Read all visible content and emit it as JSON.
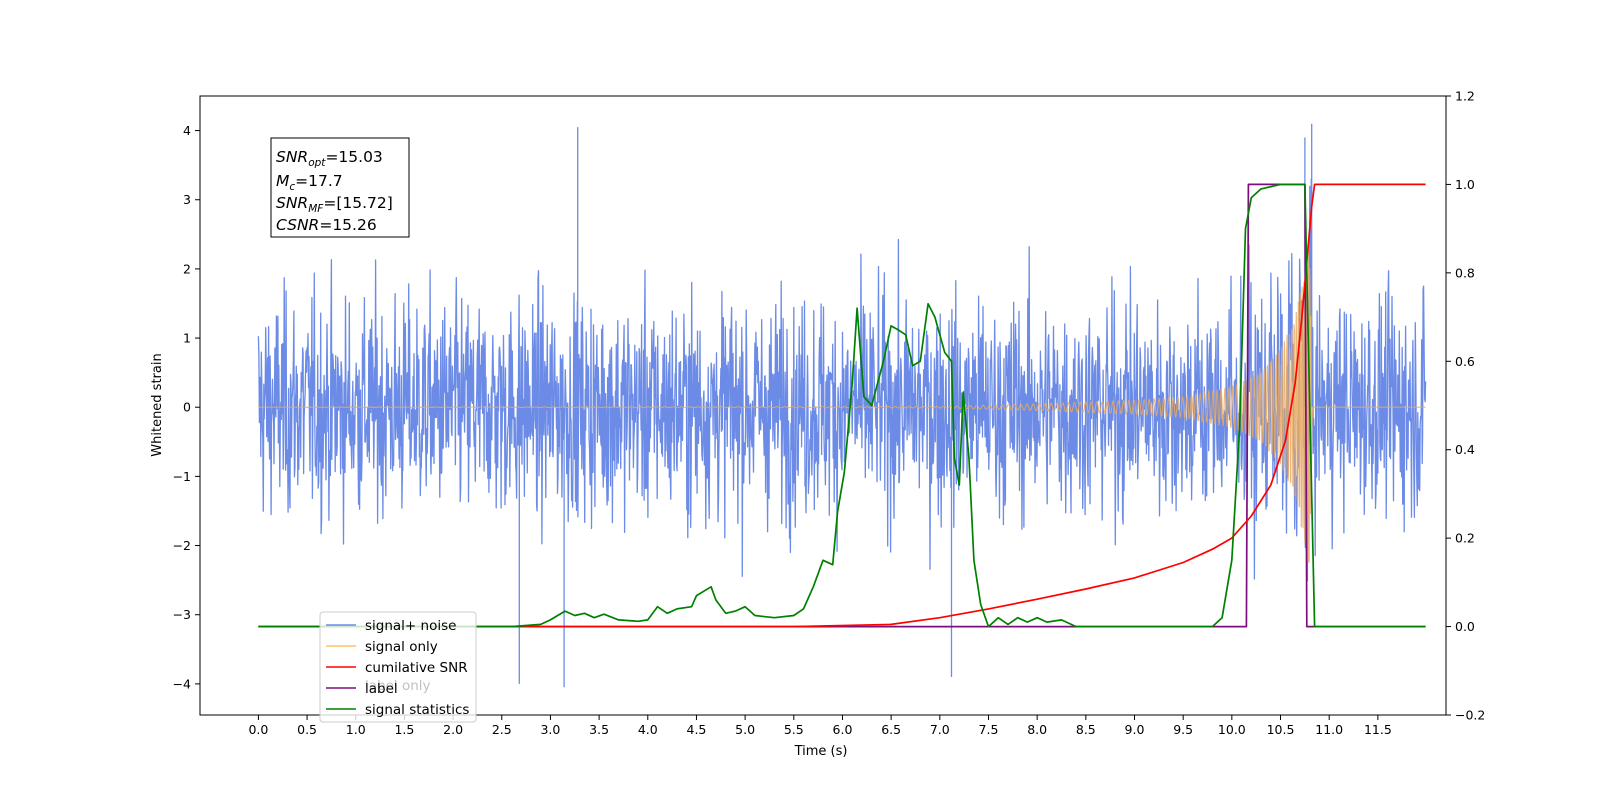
{
  "chart_data": {
    "type": "line",
    "title": "",
    "xlabel": "Time (s)",
    "ylabel": "Whitened strain",
    "xlim": [
      -0.6,
      12.2
    ],
    "ylim": [
      -4.45,
      4.5
    ],
    "y2lim": [
      -0.2,
      1.2
    ],
    "x_ticks": [
      "0.0",
      "0.5",
      "1.0",
      "1.5",
      "2.0",
      "2.5",
      "3.0",
      "3.5",
      "4.0",
      "4.5",
      "5.0",
      "5.5",
      "6.0",
      "6.5",
      "7.0",
      "7.5",
      "8.0",
      "8.5",
      "9.0",
      "9.5",
      "10.0",
      "10.5",
      "11.0",
      "11.5"
    ],
    "y_ticks": [
      "−4",
      "−3",
      "−2",
      "−1",
      "0",
      "1",
      "2",
      "3",
      "4"
    ],
    "y2_ticks": [
      "−0.2",
      "0.0",
      "0.2",
      "0.4",
      "0.6",
      "0.8",
      "1.0",
      "1.2"
    ],
    "annotation": {
      "lines": [
        {
          "sym": "SNR",
          "sub": "opt",
          "rest": "=15.03"
        },
        {
          "sym": "M",
          "sub": "c",
          "rest": "=17.7"
        },
        {
          "sym": "SNR",
          "sub": "MF",
          "rest": "=[15.72]"
        },
        {
          "sym": "CSNR",
          "sub": "",
          "rest": "=15.26"
        }
      ]
    },
    "legend": {
      "placement": "lower-left",
      "entries": [
        {
          "label": "signal+ noise",
          "color": "#6b8be6"
        },
        {
          "label": "signal only",
          "color": "#ffc060"
        },
        {
          "label": "cumilative SNR",
          "color": "#ff0000"
        },
        {
          "label": "label",
          "color": "#7b0f7b"
        },
        {
          "label": "signal statistics",
          "color": "#008000"
        }
      ],
      "hidden_label": "label only"
    },
    "series": [
      {
        "name": "signal+ noise",
        "axis": "left",
        "color": "#6b8be6",
        "x_range": [
          0.0,
          11.99
        ],
        "envelope_typical": [
          -2.6,
          2.6
        ],
        "extremes": [
          [
            3.28,
            4.05
          ],
          [
            10.82,
            4.1
          ],
          [
            10.75,
            3.9
          ],
          [
            2.68,
            -4.0
          ],
          [
            3.14,
            -4.05
          ],
          [
            7.12,
            -3.9
          ]
        ]
      },
      {
        "name": "signal only",
        "axis": "left",
        "color": "#e8a860",
        "x_range": [
          0.0,
          11.99
        ],
        "amplitude": [
          [
            0.0,
            0.0
          ],
          [
            7.0,
            0.01
          ],
          [
            8.0,
            0.05
          ],
          [
            9.0,
            0.1
          ],
          [
            9.5,
            0.15
          ],
          [
            10.0,
            0.3
          ],
          [
            10.3,
            0.5
          ],
          [
            10.5,
            0.85
          ],
          [
            10.65,
            1.3
          ],
          [
            10.75,
            2.0
          ],
          [
            10.8,
            2.6
          ],
          [
            10.83,
            0.0
          ],
          [
            11.99,
            0.0
          ]
        ]
      },
      {
        "name": "cumilative SNR",
        "axis": "right",
        "color": "#ff0000",
        "points": [
          [
            0.0,
            0.0
          ],
          [
            5.5,
            0.0
          ],
          [
            6.5,
            0.005
          ],
          [
            7.0,
            0.02
          ],
          [
            7.5,
            0.04
          ],
          [
            8.0,
            0.062
          ],
          [
            8.5,
            0.085
          ],
          [
            9.0,
            0.11
          ],
          [
            9.5,
            0.145
          ],
          [
            9.8,
            0.175
          ],
          [
            10.0,
            0.2
          ],
          [
            10.2,
            0.25
          ],
          [
            10.4,
            0.32
          ],
          [
            10.55,
            0.42
          ],
          [
            10.65,
            0.55
          ],
          [
            10.72,
            0.7
          ],
          [
            10.78,
            0.85
          ],
          [
            10.82,
            0.95
          ],
          [
            10.85,
            1.0
          ],
          [
            11.99,
            1.0
          ]
        ]
      },
      {
        "name": "label",
        "axis": "right",
        "color": "#7b0f7b",
        "points": [
          [
            0.0,
            0.0
          ],
          [
            10.15,
            0.0
          ],
          [
            10.17,
            1.0
          ],
          [
            10.75,
            1.0
          ],
          [
            10.77,
            0.0
          ],
          [
            11.99,
            0.0
          ]
        ]
      },
      {
        "name": "signal statistics",
        "axis": "right",
        "color": "#008000",
        "points": [
          [
            0.0,
            0.0
          ],
          [
            2.6,
            0.0
          ],
          [
            2.9,
            0.005
          ],
          [
            3.0,
            0.015
          ],
          [
            3.15,
            0.035
          ],
          [
            3.25,
            0.025
          ],
          [
            3.35,
            0.03
          ],
          [
            3.45,
            0.02
          ],
          [
            3.55,
            0.028
          ],
          [
            3.7,
            0.015
          ],
          [
            3.9,
            0.012
          ],
          [
            4.0,
            0.015
          ],
          [
            4.1,
            0.045
          ],
          [
            4.2,
            0.03
          ],
          [
            4.3,
            0.04
          ],
          [
            4.45,
            0.045
          ],
          [
            4.5,
            0.07
          ],
          [
            4.65,
            0.09
          ],
          [
            4.7,
            0.06
          ],
          [
            4.8,
            0.03
          ],
          [
            4.9,
            0.035
          ],
          [
            5.0,
            0.045
          ],
          [
            5.1,
            0.025
          ],
          [
            5.3,
            0.02
          ],
          [
            5.5,
            0.025
          ],
          [
            5.6,
            0.04
          ],
          [
            5.7,
            0.09
          ],
          [
            5.8,
            0.15
          ],
          [
            5.9,
            0.14
          ],
          [
            5.95,
            0.26
          ],
          [
            6.02,
            0.35
          ],
          [
            6.1,
            0.55
          ],
          [
            6.15,
            0.72
          ],
          [
            6.22,
            0.52
          ],
          [
            6.3,
            0.5
          ],
          [
            6.42,
            0.6
          ],
          [
            6.5,
            0.68
          ],
          [
            6.58,
            0.67
          ],
          [
            6.65,
            0.66
          ],
          [
            6.72,
            0.59
          ],
          [
            6.8,
            0.6
          ],
          [
            6.88,
            0.73
          ],
          [
            6.95,
            0.7
          ],
          [
            7.05,
            0.62
          ],
          [
            7.12,
            0.6
          ],
          [
            7.15,
            0.38
          ],
          [
            7.2,
            0.32
          ],
          [
            7.24,
            0.53
          ],
          [
            7.3,
            0.38
          ],
          [
            7.35,
            0.15
          ],
          [
            7.42,
            0.05
          ],
          [
            7.5,
            0.0
          ],
          [
            7.6,
            0.02
          ],
          [
            7.7,
            0.005
          ],
          [
            7.8,
            0.02
          ],
          [
            7.9,
            0.01
          ],
          [
            8.0,
            0.02
          ],
          [
            8.1,
            0.01
          ],
          [
            8.25,
            0.015
          ],
          [
            8.4,
            0.0
          ],
          [
            9.8,
            0.0
          ],
          [
            9.9,
            0.02
          ],
          [
            10.0,
            0.15
          ],
          [
            10.08,
            0.45
          ],
          [
            10.14,
            0.9
          ],
          [
            10.2,
            0.97
          ],
          [
            10.3,
            0.99
          ],
          [
            10.5,
            1.0
          ],
          [
            10.75,
            1.0
          ],
          [
            10.8,
            0.5
          ],
          [
            10.85,
            0.0
          ],
          [
            11.99,
            0.0
          ]
        ]
      }
    ]
  }
}
